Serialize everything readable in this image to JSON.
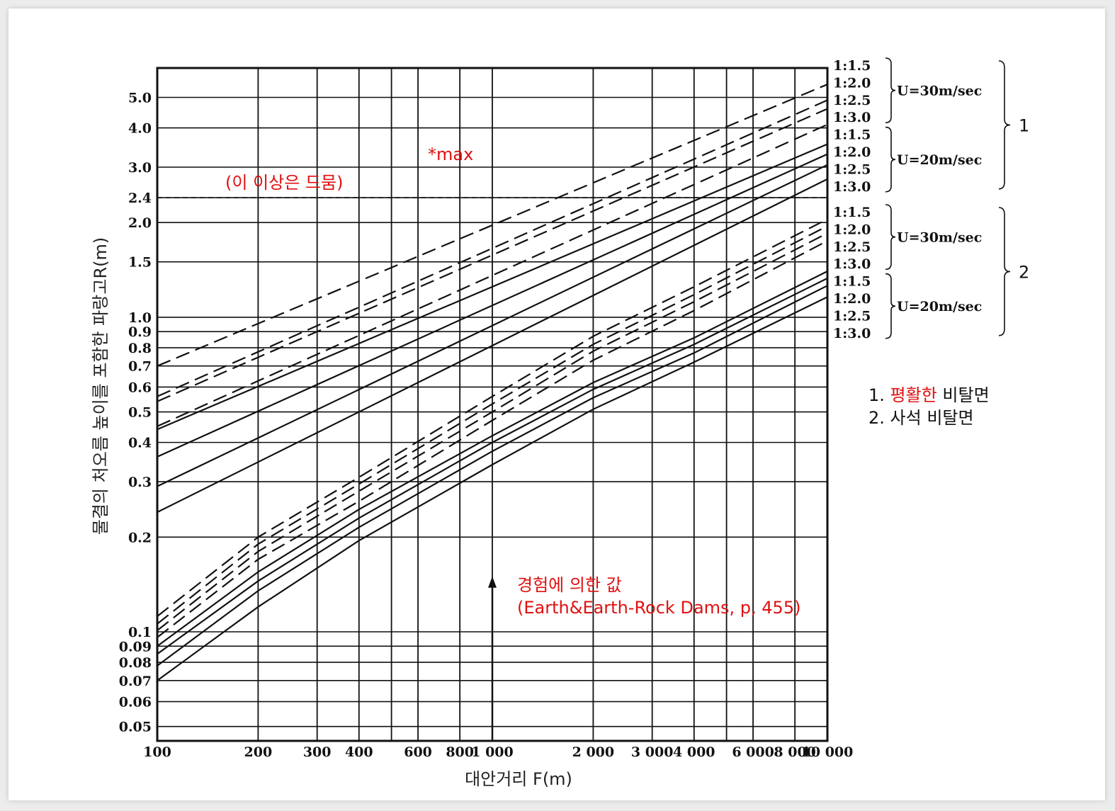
{
  "chart_data": {
    "type": "line",
    "xscale": "log",
    "yscale": "log",
    "xlim": [
      100,
      10000
    ],
    "ylim": [
      0.045,
      6.2
    ],
    "xlabel": "대안거리 F(m)",
    "ylabel": "물결의 처오름 높이를 포함한 파랑고R(m)",
    "x_ticks": [
      {
        "value": 100,
        "label": "100"
      },
      {
        "value": 200,
        "label": "200"
      },
      {
        "value": 300,
        "label": "300"
      },
      {
        "value": 400,
        "label": "400"
      },
      {
        "value": 600,
        "label": "600"
      },
      {
        "value": 800,
        "label": "800"
      },
      {
        "value": 1000,
        "label": "1 000"
      },
      {
        "value": 2000,
        "label": "2 000"
      },
      {
        "value": 3000,
        "label": "3 000"
      },
      {
        "value": 4000,
        "label": "4 000"
      },
      {
        "value": 6000,
        "label": "6 000"
      },
      {
        "value": 8000,
        "label": "8 000"
      },
      {
        "value": 10000,
        "label": "10 000"
      }
    ],
    "x_minor_grid": [
      500,
      5000
    ],
    "y_ticks": [
      {
        "value": 0.05,
        "label": "0.05"
      },
      {
        "value": 0.06,
        "label": "0.06"
      },
      {
        "value": 0.07,
        "label": "0.07"
      },
      {
        "value": 0.08,
        "label": "0.08"
      },
      {
        "value": 0.09,
        "label": "0.09"
      },
      {
        "value": 0.1,
        "label": "0.1"
      },
      {
        "value": 0.2,
        "label": "0.2"
      },
      {
        "value": 0.3,
        "label": "0.3"
      },
      {
        "value": 0.4,
        "label": "0.4"
      },
      {
        "value": 0.5,
        "label": "0.5"
      },
      {
        "value": 0.6,
        "label": "0.6"
      },
      {
        "value": 0.7,
        "label": "0.7"
      },
      {
        "value": 0.8,
        "label": "0.8"
      },
      {
        "value": 0.9,
        "label": "0.9"
      },
      {
        "value": 1.0,
        "label": "1.0"
      },
      {
        "value": 1.5,
        "label": "1.5"
      },
      {
        "value": 2.0,
        "label": "2.0"
      },
      {
        "value": 2.4,
        "label": "2.4"
      },
      {
        "value": 3.0,
        "label": "3.0"
      },
      {
        "value": 4.0,
        "label": "4.0"
      },
      {
        "value": 5.0,
        "label": "5.0"
      }
    ],
    "grid": true,
    "series": [
      {
        "name": "1:1.5",
        "group": "1",
        "wind": "U=30m/sec",
        "dash": true,
        "x": [
          100,
          10000
        ],
        "y": [
          0.7,
          5.5
        ]
      },
      {
        "name": "1:2.0",
        "group": "1",
        "wind": "U=30m/sec",
        "dash": true,
        "x": [
          100,
          10000
        ],
        "y": [
          0.56,
          4.9
        ]
      },
      {
        "name": "1:2.5",
        "group": "1",
        "wind": "U=30m/sec",
        "dash": true,
        "x": [
          100,
          10000
        ],
        "y": [
          0.54,
          4.6
        ]
      },
      {
        "name": "1:3.0",
        "group": "1",
        "wind": "U=30m/sec",
        "dash": true,
        "x": [
          100,
          10000
        ],
        "y": [
          0.45,
          4.1
        ]
      },
      {
        "name": "1:1.5",
        "group": "1",
        "wind": "U=20m/sec",
        "dash": false,
        "x": [
          100,
          10000
        ],
        "y": [
          0.44,
          3.55
        ]
      },
      {
        "name": "1:2.0",
        "group": "1",
        "wind": "U=20m/sec",
        "dash": false,
        "x": [
          100,
          10000
        ],
        "y": [
          0.36,
          3.3
        ]
      },
      {
        "name": "1:2.5",
        "group": "1",
        "wind": "U=20m/sec",
        "dash": false,
        "x": [
          100,
          10000
        ],
        "y": [
          0.29,
          3.05
        ]
      },
      {
        "name": "1:3.0",
        "group": "1",
        "wind": "U=20m/sec",
        "dash": false,
        "x": [
          100,
          10000
        ],
        "y": [
          0.24,
          2.75
        ]
      },
      {
        "name": "1:1.5",
        "group": "2",
        "wind": "U=30m/sec",
        "dash": true,
        "x": [
          100,
          200,
          400,
          1000,
          2000,
          4000,
          10000
        ],
        "y": [
          0.112,
          0.2,
          0.31,
          0.56,
          0.87,
          1.25,
          2.05
        ]
      },
      {
        "name": "1:2.0",
        "group": "2",
        "wind": "U=30m/sec",
        "dash": true,
        "x": [
          100,
          200,
          400,
          1000,
          2000,
          4000,
          10000
        ],
        "y": [
          0.106,
          0.19,
          0.295,
          0.53,
          0.82,
          1.18,
          1.95
        ]
      },
      {
        "name": "1:2.5",
        "group": "2",
        "wind": "U=30m/sec",
        "dash": true,
        "x": [
          100,
          200,
          400,
          1000,
          2000,
          4000,
          10000
        ],
        "y": [
          0.101,
          0.18,
          0.28,
          0.5,
          0.78,
          1.12,
          1.85
        ]
      },
      {
        "name": "1:3.0",
        "group": "2",
        "wind": "U=30m/sec",
        "dash": true,
        "x": [
          100,
          200,
          400,
          1000,
          2000,
          4000,
          10000
        ],
        "y": [
          0.096,
          0.17,
          0.26,
          0.47,
          0.73,
          1.05,
          1.75
        ]
      },
      {
        "name": "1:1.5",
        "group": "2",
        "wind": "U=20m/sec",
        "dash": false,
        "x": [
          100,
          200,
          400,
          1000,
          2000,
          4000,
          10000
        ],
        "y": [
          0.09,
          0.155,
          0.245,
          0.42,
          0.62,
          0.86,
          1.4
        ]
      },
      {
        "name": "1:2.0",
        "group": "2",
        "wind": "U=20m/sec",
        "dash": false,
        "x": [
          100,
          200,
          400,
          1000,
          2000,
          4000,
          10000
        ],
        "y": [
          0.085,
          0.145,
          0.23,
          0.4,
          0.59,
          0.82,
          1.33
        ]
      },
      {
        "name": "1:2.5",
        "group": "2",
        "wind": "U=20m/sec",
        "dash": false,
        "x": [
          100,
          200,
          400,
          1000,
          2000,
          4000,
          10000
        ],
        "y": [
          0.078,
          0.135,
          0.215,
          0.375,
          0.555,
          0.77,
          1.26
        ]
      },
      {
        "name": "1:3.0",
        "group": "2",
        "wind": "U=20m/sec",
        "dash": false,
        "x": [
          100,
          200,
          400,
          1000,
          2000,
          4000,
          10000
        ],
        "y": [
          0.07,
          0.12,
          0.195,
          0.34,
          0.51,
          0.72,
          1.16
        ]
      }
    ],
    "reference_line": {
      "y": 2.4,
      "style": "dashed"
    },
    "arrow": {
      "x": 1000,
      "y_from": 0.05,
      "y_to": 0.15
    },
    "annotations": {
      "max_label": "*max",
      "rare_note": "(이 이상은 드뭄)",
      "empirical_1": "경험에 의한 값",
      "empirical_2": "(Earth&Earth-Rock Dams, p, 455)"
    },
    "legend": {
      "groups": [
        {
          "id": "1",
          "label": "1",
          "winds": [
            {
              "label": "U=30m/sec",
              "slopes": [
                "1:1.5",
                "1:2.0",
                "1:2.5",
                "1:3.0"
              ]
            },
            {
              "label": "U=20m/sec",
              "slopes": [
                "1:1.5",
                "1:2.0",
                "1:2.5",
                "1:3.0"
              ]
            }
          ]
        },
        {
          "id": "2",
          "label": "2",
          "winds": [
            {
              "label": "U=30m/sec",
              "slopes": [
                "1:1.5",
                "1:2.0",
                "1:2.5",
                "1:3.0"
              ]
            },
            {
              "label": "U=20m/sec",
              "slopes": [
                "1:1.5",
                "1:2.0",
                "1:2.5",
                "1:3.0"
              ]
            }
          ]
        }
      ],
      "notes": [
        {
          "prefix": "1. ",
          "highlight": "평활한",
          "suffix": " 비탈면"
        },
        {
          "prefix": "2. ",
          "highlight": "",
          "suffix": "사석 비탈면"
        }
      ]
    },
    "colors": {
      "ink": "#111111",
      "annotation": "#e01010"
    }
  }
}
